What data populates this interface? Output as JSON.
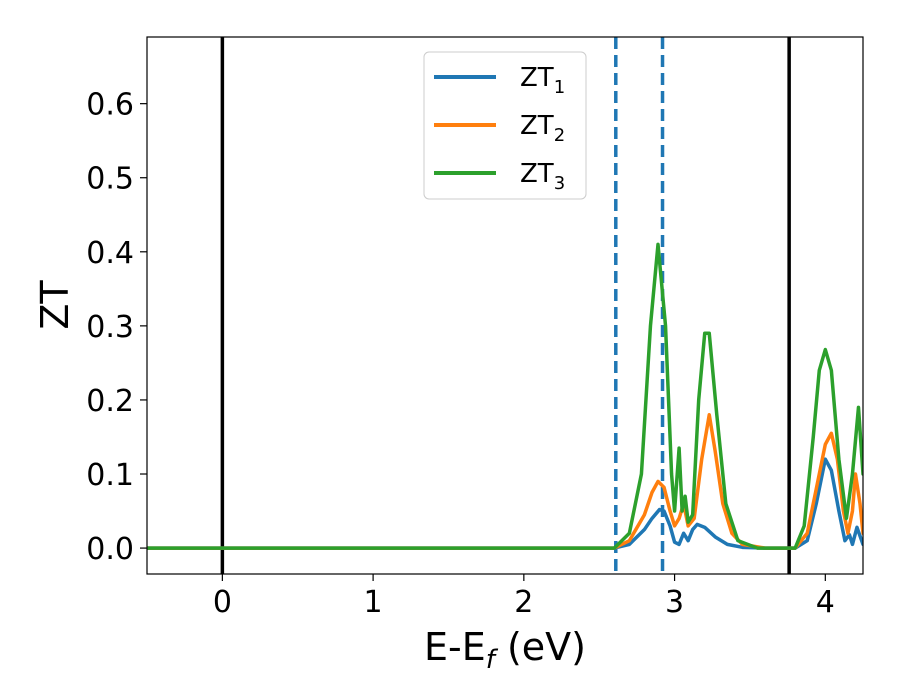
{
  "chart_data": {
    "type": "line",
    "title": "",
    "xlabel": "E-E",
    "xlabel_sub": "f",
    "xlabel_unit": " (eV)",
    "ylabel": "ZT",
    "xlim": [
      -0.5,
      4.25
    ],
    "ylim": [
      -0.035,
      0.69
    ],
    "x_ticks": [
      0,
      1,
      2,
      3,
      4
    ],
    "x_tick_labels": [
      "0",
      "1",
      "2",
      "3",
      "4"
    ],
    "y_ticks": [
      0.0,
      0.1,
      0.2,
      0.3,
      0.4,
      0.5,
      0.6
    ],
    "y_tick_labels": [
      "0.0",
      "0.1",
      "0.2",
      "0.3",
      "0.4",
      "0.5",
      "0.6"
    ],
    "grid": false,
    "legend_placement": "upper-center",
    "vertical_lines": [
      {
        "x": 0.0,
        "style": "solid",
        "color": "#000000"
      },
      {
        "x": 3.76,
        "style": "solid",
        "color": "#000000"
      },
      {
        "x": 2.61,
        "style": "dashed",
        "color": "#1f77b4"
      },
      {
        "x": 2.92,
        "style": "dashed",
        "color": "#1f77b4"
      }
    ],
    "series": [
      {
        "name": "ZT",
        "name_sub": "1",
        "color": "#1f77b4",
        "points": [
          [
            -0.5,
            0
          ],
          [
            2.6,
            0
          ],
          [
            2.7,
            0.005
          ],
          [
            2.8,
            0.025
          ],
          [
            2.85,
            0.04
          ],
          [
            2.9,
            0.052
          ],
          [
            2.93,
            0.05
          ],
          [
            2.97,
            0.03
          ],
          [
            3.0,
            0.008
          ],
          [
            3.03,
            0.005
          ],
          [
            3.06,
            0.02
          ],
          [
            3.09,
            0.01
          ],
          [
            3.12,
            0.025
          ],
          [
            3.15,
            0.032
          ],
          [
            3.2,
            0.028
          ],
          [
            3.27,
            0.015
          ],
          [
            3.35,
            0.005
          ],
          [
            3.45,
            0.001
          ],
          [
            3.6,
            0
          ],
          [
            3.8,
            0
          ],
          [
            3.88,
            0.01
          ],
          [
            3.94,
            0.06
          ],
          [
            4.0,
            0.12
          ],
          [
            4.04,
            0.105
          ],
          [
            4.09,
            0.05
          ],
          [
            4.13,
            0.01
          ],
          [
            4.16,
            0.018
          ],
          [
            4.18,
            0.005
          ],
          [
            4.21,
            0.028
          ],
          [
            4.25,
            0.005
          ]
        ]
      },
      {
        "name": "ZT",
        "name_sub": "2",
        "color": "#ff7f0e",
        "points": [
          [
            -0.5,
            0
          ],
          [
            2.6,
            0
          ],
          [
            2.7,
            0.01
          ],
          [
            2.8,
            0.045
          ],
          [
            2.85,
            0.075
          ],
          [
            2.89,
            0.09
          ],
          [
            2.93,
            0.082
          ],
          [
            2.97,
            0.05
          ],
          [
            3.0,
            0.03
          ],
          [
            3.03,
            0.04
          ],
          [
            3.06,
            0.06
          ],
          [
            3.09,
            0.03
          ],
          [
            3.13,
            0.04
          ],
          [
            3.18,
            0.12
          ],
          [
            3.23,
            0.18
          ],
          [
            3.27,
            0.13
          ],
          [
            3.32,
            0.06
          ],
          [
            3.38,
            0.02
          ],
          [
            3.45,
            0.005
          ],
          [
            3.6,
            0
          ],
          [
            3.8,
            0
          ],
          [
            3.88,
            0.02
          ],
          [
            3.94,
            0.08
          ],
          [
            4.0,
            0.14
          ],
          [
            4.04,
            0.155
          ],
          [
            4.08,
            0.12
          ],
          [
            4.12,
            0.05
          ],
          [
            4.15,
            0.02
          ],
          [
            4.18,
            0.05
          ],
          [
            4.2,
            0.1
          ],
          [
            4.23,
            0.06
          ],
          [
            4.25,
            0.02
          ]
        ]
      },
      {
        "name": "ZT",
        "name_sub": "3",
        "color": "#2ca02c",
        "points": [
          [
            -0.5,
            0
          ],
          [
            2.6,
            0
          ],
          [
            2.7,
            0.02
          ],
          [
            2.78,
            0.1
          ],
          [
            2.84,
            0.3
          ],
          [
            2.89,
            0.41
          ],
          [
            2.94,
            0.3
          ],
          [
            2.98,
            0.1
          ],
          [
            3.0,
            0.05
          ],
          [
            3.03,
            0.135
          ],
          [
            3.05,
            0.05
          ],
          [
            3.07,
            0.07
          ],
          [
            3.09,
            0.035
          ],
          [
            3.12,
            0.045
          ],
          [
            3.16,
            0.2
          ],
          [
            3.2,
            0.29
          ],
          [
            3.23,
            0.29
          ],
          [
            3.28,
            0.18
          ],
          [
            3.34,
            0.06
          ],
          [
            3.42,
            0.01
          ],
          [
            3.55,
            0
          ],
          [
            3.8,
            0
          ],
          [
            3.86,
            0.03
          ],
          [
            3.92,
            0.15
          ],
          [
            3.96,
            0.24
          ],
          [
            4.0,
            0.268
          ],
          [
            4.04,
            0.24
          ],
          [
            4.09,
            0.12
          ],
          [
            4.14,
            0.04
          ],
          [
            4.18,
            0.1
          ],
          [
            4.22,
            0.19
          ],
          [
            4.25,
            0.1
          ]
        ]
      }
    ]
  }
}
